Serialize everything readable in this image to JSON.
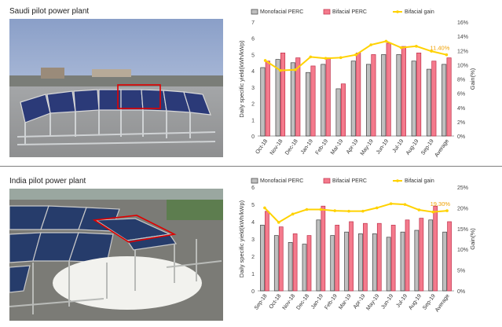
{
  "panels": [
    {
      "title": "Saudi pilot power plant",
      "photo_icon": "solar-panel-photo"
    },
    {
      "title": "India pilot power plant",
      "photo_icon": "solar-panel-photo"
    }
  ],
  "colors": {
    "mono_fill": "#bfbfbf",
    "mono_stroke": "#404040",
    "bi_fill": "#f47a8c",
    "bi_stroke": "#c0304a",
    "gain_line": "#ffd200",
    "highlight": "#e00000",
    "annotation": "#f0a000"
  },
  "chart_data": [
    {
      "type": "bar",
      "categories": [
        "Oct-18",
        "Nov-18",
        "Dec-18",
        "Jan-19",
        "Feb-19",
        "Mar-19",
        "Apr-19",
        "May-19",
        "Jun-19",
        "Jul-19",
        "Aug-19",
        "Sep-19",
        "Average"
      ],
      "series": [
        {
          "name": "Monofacial PERC",
          "type": "bar",
          "values": [
            4.2,
            4.7,
            4.5,
            3.9,
            4.4,
            2.9,
            4.6,
            4.4,
            5.0,
            5.0,
            4.6,
            4.1,
            4.4
          ]
        },
        {
          "name": "Bifacial PERC",
          "type": "bar",
          "values": [
            4.6,
            5.1,
            4.8,
            4.3,
            4.8,
            3.2,
            5.1,
            5.0,
            5.7,
            5.5,
            5.1,
            4.6,
            4.8
          ]
        },
        {
          "name": "Bifacial gain",
          "type": "line",
          "axis": "right",
          "values": [
            10.6,
            9.2,
            9.3,
            11.1,
            10.9,
            11.0,
            11.4,
            12.8,
            13.3,
            12.4,
            12.6,
            11.9,
            11.4
          ]
        }
      ],
      "ylabel": "Daily specific yield(kWh/kWp)",
      "ylabel_right": "Gain(%)",
      "yticks": [
        "0",
        "1",
        "2",
        "3",
        "4",
        "5",
        "6",
        "7"
      ],
      "ylim": [
        0,
        7
      ],
      "yticks_right": [
        "0%",
        "2%",
        "4%",
        "6%",
        "8%",
        "10%",
        "12%",
        "14%",
        "16%"
      ],
      "ylim_right": [
        0,
        16
      ],
      "annotation": "11.40%",
      "legend": "top"
    },
    {
      "type": "bar",
      "categories": [
        "Sep-18",
        "Oct-18",
        "Nov-18",
        "Dec-18",
        "Jan-19",
        "Feb-19",
        "Mar-19",
        "Apr-19",
        "May-19",
        "Jun-19",
        "Jul-19",
        "Aug-19",
        "Sep-19",
        "Average"
      ],
      "series": [
        {
          "name": "Monofacial PERC",
          "type": "bar",
          "values": [
            3.8,
            3.2,
            2.8,
            2.7,
            4.1,
            3.2,
            3.4,
            3.3,
            3.3,
            3.1,
            3.4,
            3.5,
            4.1,
            3.4
          ]
        },
        {
          "name": "Bifacial PERC",
          "type": "bar",
          "values": [
            4.6,
            3.7,
            3.3,
            3.2,
            4.9,
            3.8,
            4.0,
            3.9,
            3.9,
            3.8,
            4.1,
            4.2,
            4.9,
            4.0
          ]
        },
        {
          "name": "Bifacial gain",
          "type": "line",
          "axis": "right",
          "values": [
            20.0,
            16.5,
            18.5,
            19.6,
            19.6,
            19.3,
            19.2,
            19.2,
            20.0,
            21.0,
            20.8,
            19.5,
            19.0,
            19.3
          ]
        }
      ],
      "ylabel": "Daily specific yield(kWh/kWp)",
      "ylabel_right": "Gain(%)",
      "yticks": [
        "0",
        "1",
        "2",
        "3",
        "4",
        "5",
        "6"
      ],
      "ylim": [
        0,
        6
      ],
      "yticks_right": [
        "0%",
        "5%",
        "10%",
        "15%",
        "20%",
        "25%"
      ],
      "ylim_right": [
        0,
        25
      ],
      "annotation": "19.30%",
      "legend": "top"
    }
  ]
}
